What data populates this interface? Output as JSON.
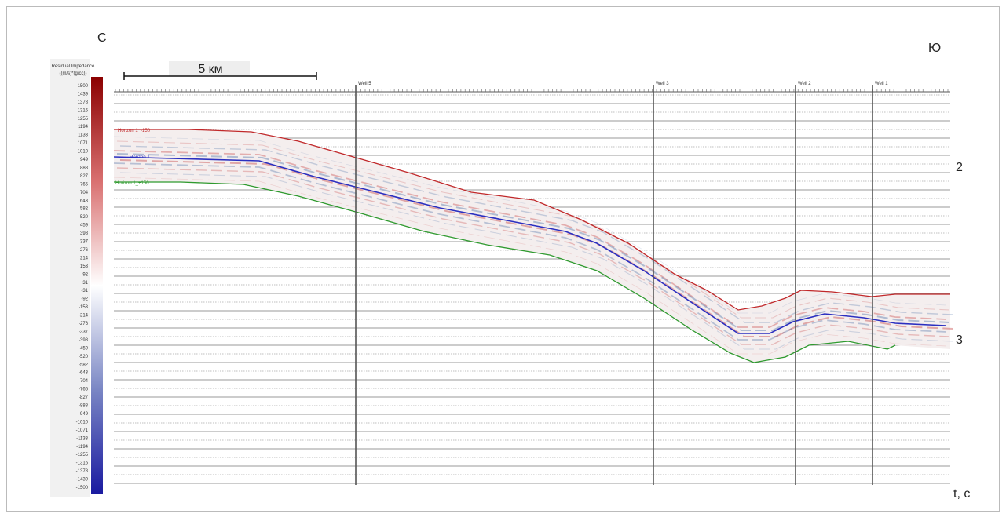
{
  "directions": {
    "north": "С",
    "south": "Ю"
  },
  "scale_bar": "5 км",
  "colorbar": {
    "title": "Residual Impedance",
    "units": "((m/s)*(g/cc))",
    "ticks": [
      1500,
      1439,
      1378,
      1316,
      1255,
      1194,
      1133,
      1071,
      1010,
      949,
      888,
      827,
      765,
      704,
      643,
      582,
      520,
      459,
      398,
      337,
      276,
      214,
      153,
      92,
      31,
      -31,
      -92,
      -153,
      -214,
      -276,
      -337,
      -398,
      -459,
      -520,
      -582,
      -643,
      -704,
      -765,
      -827,
      -888,
      -949,
      -1010,
      -1071,
      -1133,
      -1194,
      -1255,
      -1316,
      -1378,
      -1439,
      -1500
    ]
  },
  "wells": [
    "Well 5",
    "Well 3",
    "Well 2",
    "Well 1"
  ],
  "horizons": [
    "Horizon 1_-150",
    "Horizon 1",
    "Horizon 1_+150"
  ],
  "time_labels": [
    "2",
    "3"
  ],
  "time_axis_label": "t, c"
}
